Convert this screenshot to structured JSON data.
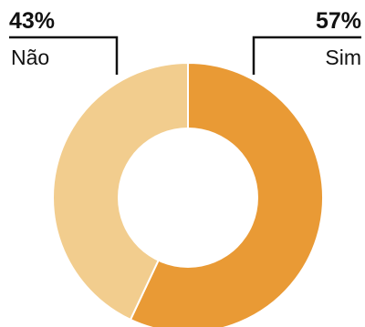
{
  "chart_data": {
    "type": "pie",
    "variant": "donut",
    "slices": [
      {
        "label": "Sim",
        "value_label": "57%",
        "value": 57,
        "color": "#e99a35"
      },
      {
        "label": "Não",
        "value_label": "43%",
        "value": 43,
        "color": "#f2cd8e"
      }
    ],
    "start": "top",
    "direction": "clockwise",
    "divider_color": "#ffffff",
    "hole_color": "#ffffff"
  }
}
